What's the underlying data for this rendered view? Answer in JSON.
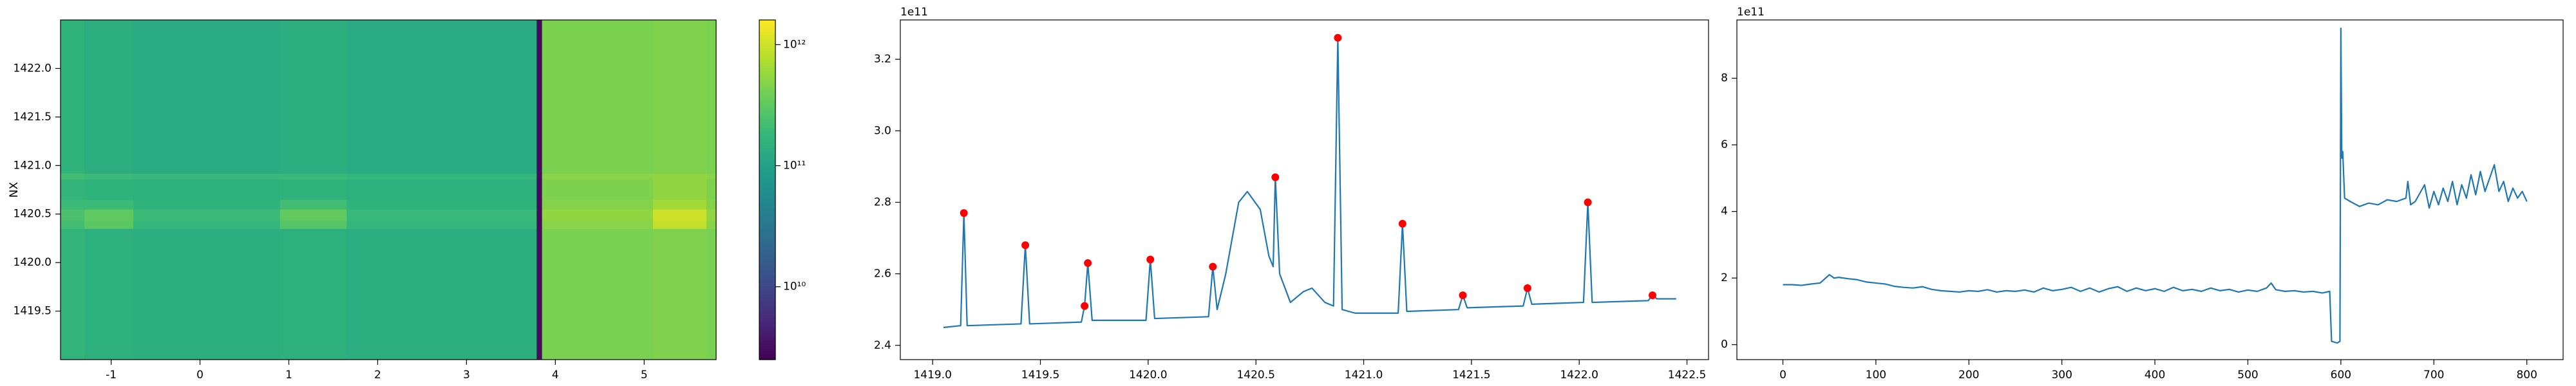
{
  "chart_data": [
    {
      "type": "heatmap",
      "y_label": "NX",
      "colormap": "viridis",
      "log_color": true,
      "clim": [
        2500000000.0,
        1600000000000.0
      ],
      "xlim": [
        -1.57,
        5.81
      ],
      "ylim": [
        1419.0,
        1422.5
      ],
      "xticks": [
        -1,
        0,
        1,
        2,
        3,
        4,
        5
      ],
      "yticks": [
        1419.5,
        {
          "value": 1420.0,
          "label": "1420.0"
        },
        1420.5,
        {
          "value": 1421.0,
          "label": "1421.0"
        },
        1421.5,
        {
          "value": 1422.0,
          "label": "1422.0"
        }
      ],
      "cticks": [
        {
          "value": 10000000000.0,
          "label": "10¹⁰"
        },
        {
          "value": 100000000000.0,
          "label": "10¹¹"
        },
        {
          "value": 1000000000000.0,
          "label": "10¹²"
        }
      ],
      "x_edges": [
        -1.57,
        -1.3,
        -0.75,
        0.9,
        1.65,
        3.79,
        3.85,
        5.1,
        5.7,
        5.81
      ],
      "y_edges": [
        1419.0,
        1420.35,
        1420.43,
        1420.55,
        1420.65,
        1420.86,
        1420.92,
        1422.5
      ],
      "z": [
        [
          170000000000.0,
          150000000000.0,
          140000000000.0,
          150000000000.0,
          140000000000.0,
          3000000000.0,
          430000000000.0,
          460000000000.0,
          430000000000.0
        ],
        [
          220000000000.0,
          300000000000.0,
          180000000000.0,
          280000000000.0,
          180000000000.0,
          3000000000.0,
          500000000000.0,
          900000000000.0,
          500000000000.0
        ],
        [
          250000000000.0,
          320000000000.0,
          200000000000.0,
          330000000000.0,
          190000000000.0,
          3000000000.0,
          550000000000.0,
          1000000000000.0,
          550000000000.0
        ],
        [
          200000000000.0,
          200000000000.0,
          160000000000.0,
          220000000000.0,
          160000000000.0,
          3000000000.0,
          480000000000.0,
          650000000000.0,
          480000000000.0
        ],
        [
          170000000000.0,
          160000000000.0,
          150000000000.0,
          160000000000.0,
          150000000000.0,
          3000000000.0,
          450000000000.0,
          550000000000.0,
          450000000000.0
        ],
        [
          220000000000.0,
          200000000000.0,
          190000000000.0,
          190000000000.0,
          180000000000.0,
          3000000000.0,
          500000000000.0,
          550000000000.0,
          500000000000.0
        ],
        [
          160000000000.0,
          140000000000.0,
          130000000000.0,
          140000000000.0,
          130000000000.0,
          3000000000.0,
          440000000000.0,
          460000000000.0,
          440000000000.0
        ]
      ]
    },
    {
      "type": "line",
      "offset_label": "1e11",
      "xlim": [
        1418.85,
        1422.6
      ],
      "ylim": [
        2.36,
        3.31
      ],
      "xticks": [
        {
          "value": 1419.0,
          "label": "1419.0"
        },
        1419.5,
        {
          "value": 1420.0,
          "label": "1420.0"
        },
        1420.5,
        {
          "value": 1421.0,
          "label": "1421.0"
        },
        1421.5,
        {
          "value": 1422.0,
          "label": "1422.0"
        },
        1422.5
      ],
      "yticks": [
        2.4,
        2.6,
        2.8,
        {
          "value": 3.0,
          "label": "3.0"
        },
        3.2
      ],
      "series": [
        {
          "color": "#1f77b4",
          "style": "line",
          "x": [
            1419.05,
            1419.13,
            1419.145,
            1419.16,
            1419.41,
            1419.43,
            1419.45,
            1419.69,
            1419.705,
            1419.72,
            1419.74,
            1419.99,
            1420.01,
            1420.03,
            1420.28,
            1420.3,
            1420.32,
            1420.36,
            1420.42,
            1420.46,
            1420.52,
            1420.56,
            1420.58,
            1420.59,
            1420.61,
            1420.66,
            1420.72,
            1420.76,
            1420.82,
            1420.86,
            1420.88,
            1420.9,
            1420.96,
            1421.16,
            1421.18,
            1421.2,
            1421.44,
            1421.46,
            1421.48,
            1421.74,
            1421.76,
            1421.78,
            1422.02,
            1422.04,
            1422.06,
            1422.32,
            1422.34,
            1422.36,
            1422.45
          ],
          "values": [
            2.45,
            2.455,
            2.77,
            2.455,
            2.46,
            2.68,
            2.46,
            2.465,
            2.51,
            2.63,
            2.47,
            2.47,
            2.64,
            2.475,
            2.48,
            2.62,
            2.5,
            2.6,
            2.8,
            2.83,
            2.78,
            2.65,
            2.62,
            2.87,
            2.6,
            2.52,
            2.55,
            2.56,
            2.52,
            2.51,
            3.26,
            2.5,
            2.49,
            2.49,
            2.74,
            2.495,
            2.5,
            2.54,
            2.505,
            2.51,
            2.56,
            2.515,
            2.52,
            2.8,
            2.52,
            2.525,
            2.54,
            2.53,
            2.53
          ]
        },
        {
          "color": "#ff0000",
          "style": "markers",
          "x": [
            1419.145,
            1419.43,
            1419.705,
            1419.72,
            1420.01,
            1420.3,
            1420.59,
            1420.88,
            1421.18,
            1421.46,
            1421.76,
            1422.04,
            1422.34
          ],
          "values": [
            2.77,
            2.68,
            2.51,
            2.63,
            2.64,
            2.62,
            2.87,
            3.26,
            2.74,
            2.54,
            2.56,
            2.8,
            2.54
          ]
        }
      ]
    },
    {
      "type": "line",
      "offset_label": "1e11",
      "xlim": [
        -49.5,
        839
      ],
      "ylim": [
        -0.45,
        9.75
      ],
      "xticks": [
        0,
        100,
        200,
        300,
        400,
        500,
        600,
        700,
        800
      ],
      "yticks": [
        0,
        2,
        4,
        6,
        8
      ],
      "series": [
        {
          "color": "#1f77b4",
          "style": "line",
          "x": [
            0,
            10,
            20,
            30,
            40,
            50,
            55,
            60,
            70,
            80,
            90,
            100,
            110,
            120,
            130,
            140,
            150,
            160,
            170,
            180,
            190,
            200,
            210,
            220,
            230,
            240,
            250,
            260,
            270,
            280,
            290,
            300,
            310,
            320,
            330,
            340,
            350,
            360,
            370,
            380,
            390,
            400,
            410,
            420,
            430,
            440,
            450,
            460,
            470,
            480,
            490,
            500,
            510,
            520,
            525,
            530,
            540,
            550,
            560,
            570,
            580,
            588,
            590,
            596,
            599,
            600,
            601,
            602,
            604,
            610,
            620,
            630,
            640,
            650,
            660,
            670,
            672,
            675,
            680,
            690,
            695,
            700,
            705,
            710,
            715,
            720,
            725,
            730,
            735,
            740,
            745,
            750,
            755,
            760,
            765,
            770,
            775,
            780,
            785,
            790,
            795,
            800
          ],
          "values": [
            1.8,
            1.8,
            1.78,
            1.82,
            1.85,
            2.1,
            2.0,
            2.02,
            1.98,
            1.95,
            1.88,
            1.85,
            1.82,
            1.75,
            1.72,
            1.7,
            1.74,
            1.66,
            1.62,
            1.6,
            1.58,
            1.62,
            1.6,
            1.65,
            1.58,
            1.62,
            1.6,
            1.64,
            1.58,
            1.7,
            1.62,
            1.66,
            1.72,
            1.6,
            1.7,
            1.58,
            1.68,
            1.74,
            1.6,
            1.7,
            1.62,
            1.68,
            1.6,
            1.72,
            1.62,
            1.66,
            1.6,
            1.7,
            1.62,
            1.66,
            1.58,
            1.64,
            1.6,
            1.7,
            1.85,
            1.65,
            1.6,
            1.62,
            1.58,
            1.6,
            1.55,
            1.6,
            0.1,
            0.05,
            0.1,
            9.5,
            5.6,
            5.8,
            4.4,
            4.3,
            4.15,
            4.25,
            4.2,
            4.35,
            4.3,
            4.4,
            4.9,
            4.2,
            4.3,
            4.8,
            4.1,
            4.6,
            4.2,
            4.7,
            4.3,
            4.9,
            4.2,
            4.8,
            4.4,
            5.1,
            4.5,
            5.2,
            4.6,
            5.0,
            5.4,
            4.6,
            4.9,
            4.3,
            4.7,
            4.4,
            4.6,
            4.3
          ]
        }
      ]
    }
  ]
}
